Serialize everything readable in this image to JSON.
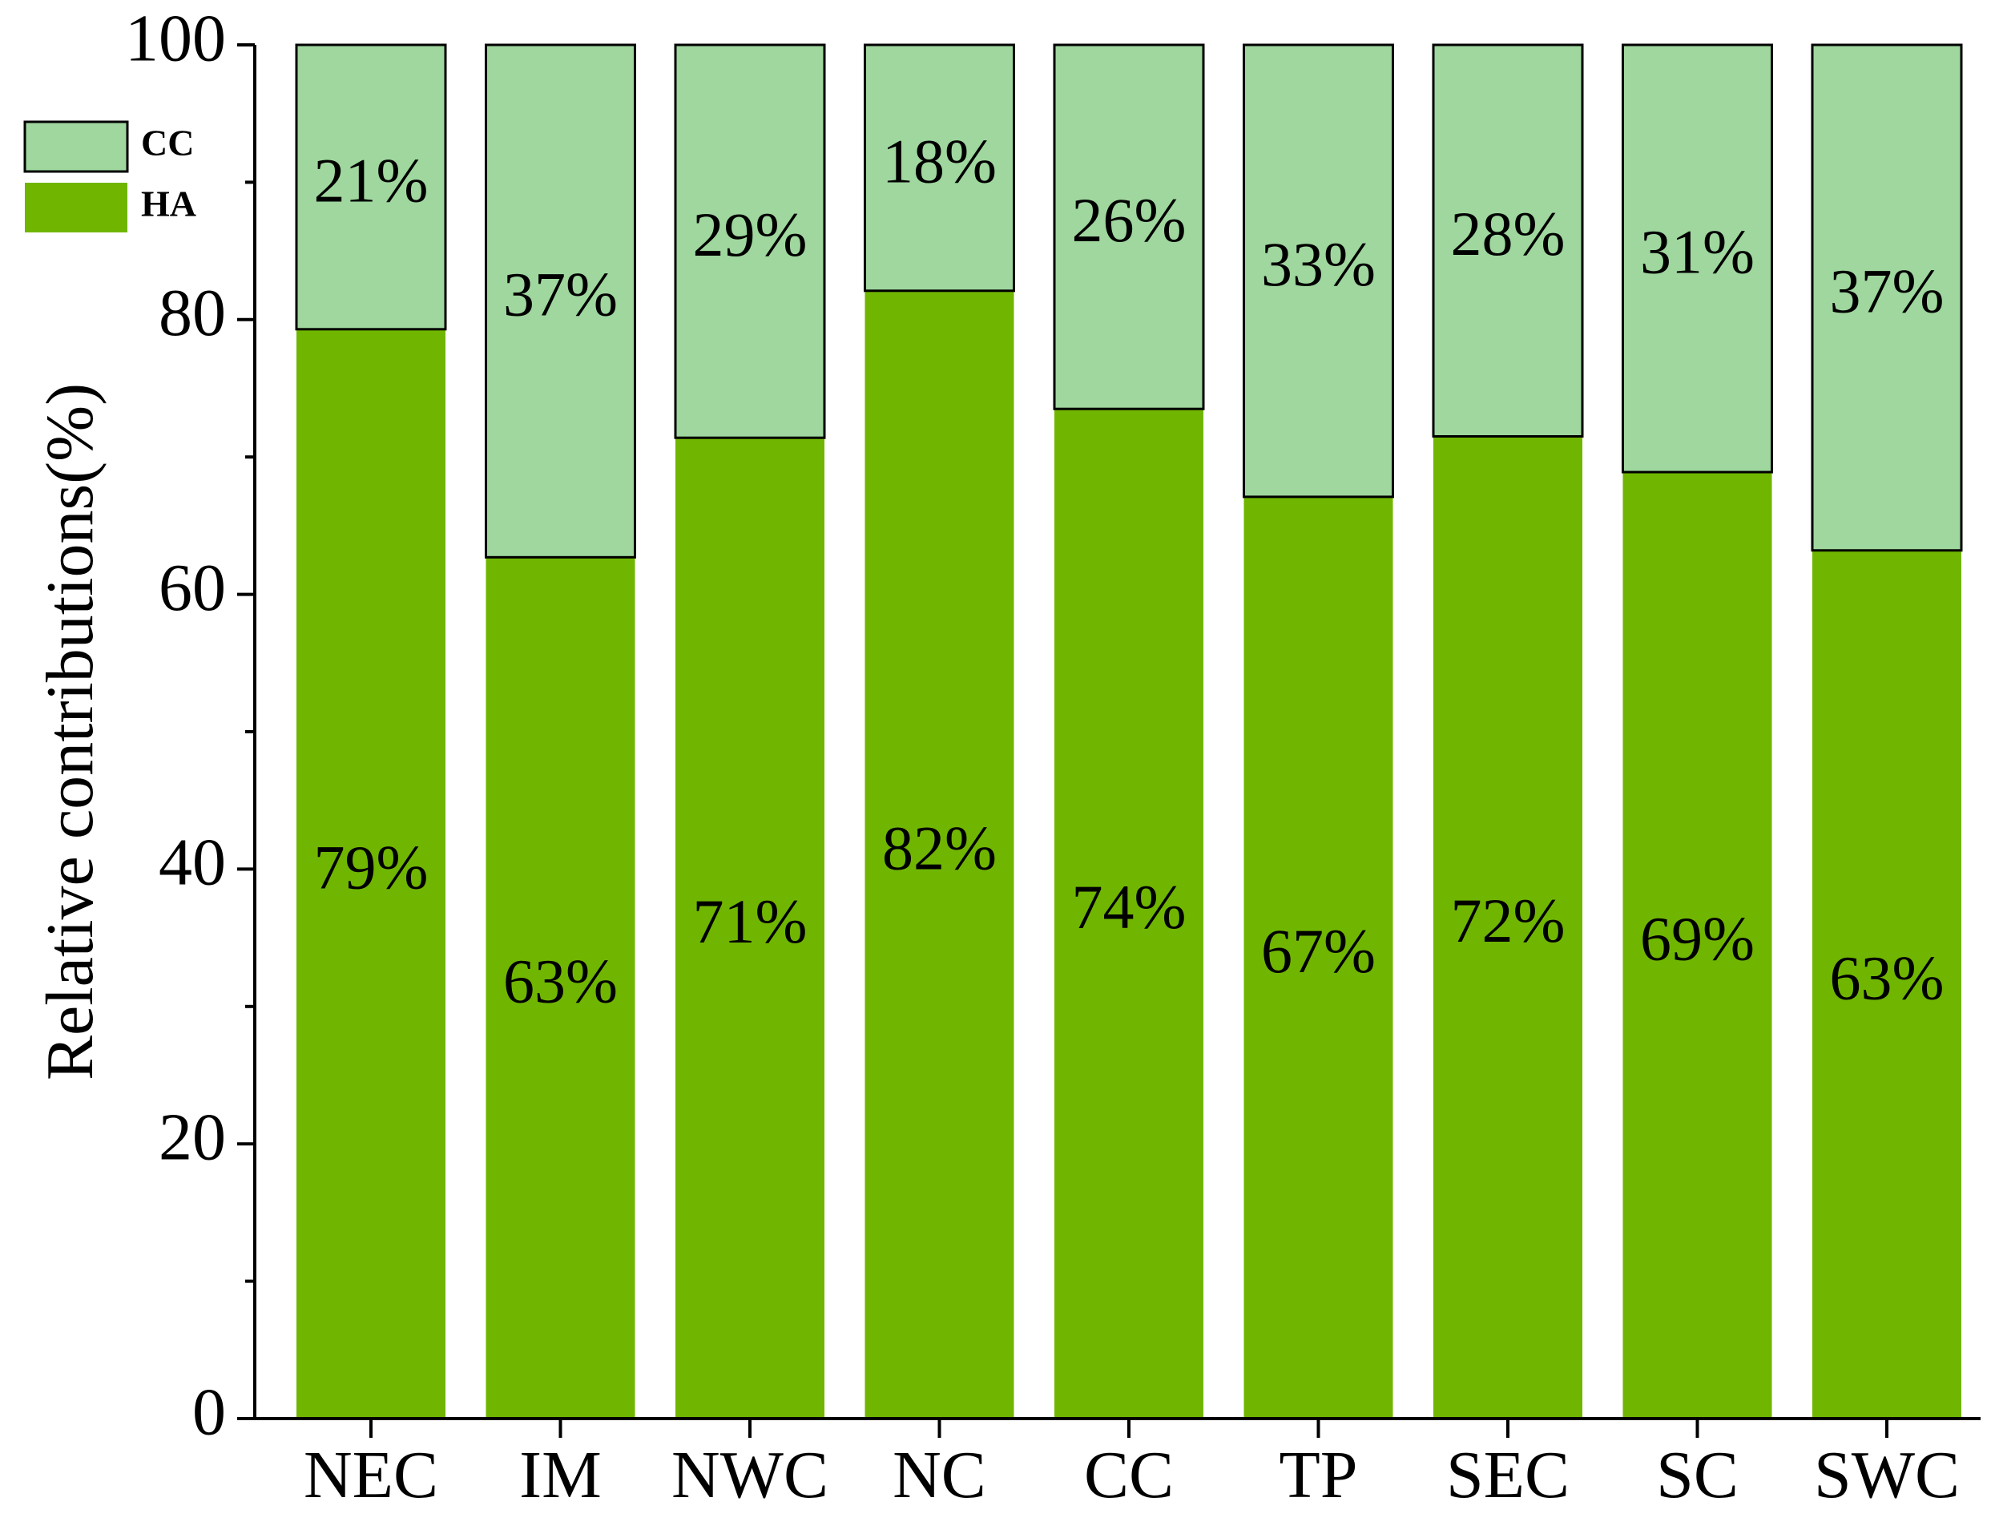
{
  "chart_data": {
    "type": "bar",
    "stacked": true,
    "categories": [
      "NEC",
      "IM",
      "NWC",
      "NC",
      "CC",
      "TP",
      "SEC",
      "SC",
      "SWC"
    ],
    "series": [
      {
        "name": "HA",
        "color": "#70b600",
        "values": [
          79.3,
          62.7,
          71.4,
          82.1,
          73.5,
          67.1,
          71.5,
          68.9,
          63.2
        ],
        "labels": [
          "79%",
          "63%",
          "71%",
          "82%",
          "74%",
          "67%",
          "72%",
          "69%",
          "63%"
        ]
      },
      {
        "name": "CC",
        "color": "#9fd79e",
        "values": [
          20.7,
          37.3,
          28.6,
          17.9,
          26.5,
          32.9,
          28.5,
          31.1,
          36.8
        ],
        "labels": [
          "21%",
          "37%",
          "29%",
          "18%",
          "26%",
          "33%",
          "28%",
          "31%",
          "37%"
        ]
      }
    ],
    "xlabel": "",
    "ylabel": "Relative contributions(%)",
    "ylim": [
      0,
      100
    ],
    "yticks": [
      "0",
      "20",
      "40",
      "60",
      "80",
      "100"
    ],
    "grid": false,
    "legend_position": "top-left"
  }
}
